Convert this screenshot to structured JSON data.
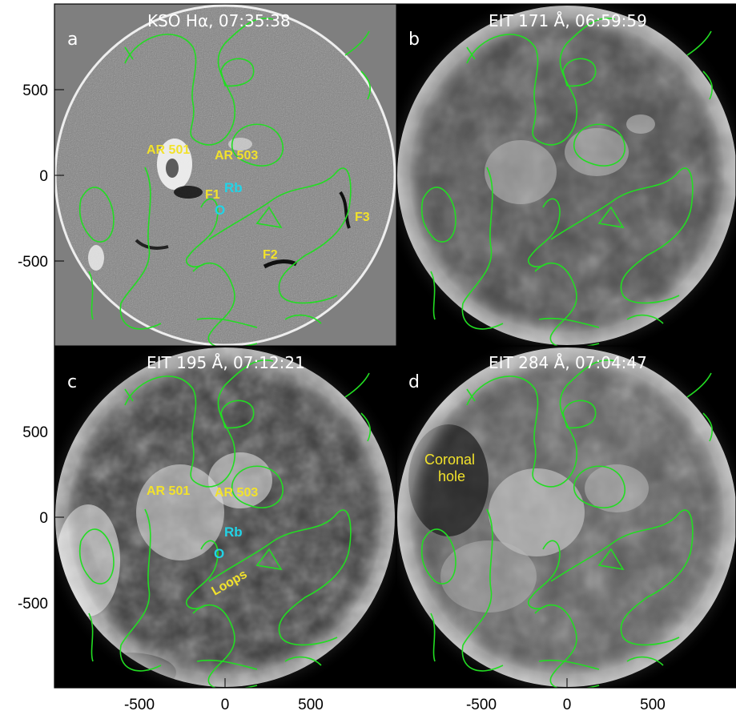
{
  "panels": [
    {
      "letter": "a",
      "title": "KSO Hα, 07:35:38"
    },
    {
      "letter": "b",
      "title": "EIT 171 Å, 06:59:59"
    },
    {
      "letter": "c",
      "title": "EIT 195 Å, 07:12:21"
    },
    {
      "letter": "d",
      "title": "EIT 284 Å, 07:04:47"
    }
  ],
  "annotations": {
    "a": {
      "ar501": "AR 501",
      "ar503": "AR 503",
      "f1": "F1",
      "rb": "Rb",
      "o": "O",
      "f2": "F2",
      "f3": "F3"
    },
    "c": {
      "ar501": "AR 501",
      "ar503": "AR 503",
      "rb": "Rb",
      "o": "O",
      "loops": "Loops"
    },
    "d": {
      "coronal1": "Coronal",
      "coronal2": "hole"
    }
  },
  "axes": {
    "y_ticks": [
      "500",
      "0",
      "-500"
    ],
    "x_ticks": [
      "-500",
      "0",
      "500"
    ]
  },
  "colors": {
    "contour": "#22dd22",
    "label_yellow": "#f2e22b",
    "label_cyan": "#22d3e6",
    "background_square_a": "#7f7f7f",
    "background_square_bcd": "#000000"
  }
}
